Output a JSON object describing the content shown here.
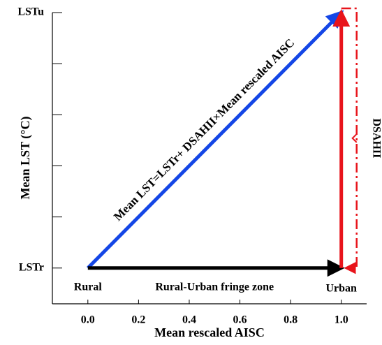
{
  "chart_data": {
    "type": "line",
    "x_label": "Mean rescaled AISC",
    "y_label": "Mean LST (°C)",
    "xlim": [
      -0.14,
      1.1
    ],
    "xticks": [
      {
        "value": 0,
        "label": "0.0"
      },
      0.2,
      0.4,
      0.6,
      0.8,
      {
        "value": 1,
        "label": "1.0"
      }
    ],
    "ylim": [
      -0.14,
      1.0
    ],
    "yticks": [
      {
        "value": 0,
        "label": "LSTr"
      },
      {
        "value": 1,
        "label": "LSTu"
      }
    ],
    "yminorticks": [
      0.2,
      0.4,
      0.6,
      0.8
    ],
    "lines": [
      {
        "color": "#1446e6",
        "x": [
          0,
          1
        ],
        "values": [
          0,
          1
        ]
      },
      {
        "color": "#000000",
        "x": [
          0,
          1
        ],
        "values": [
          0,
          0
        ]
      },
      {
        "color": "#e8141b",
        "x": [
          1,
          1
        ],
        "values": [
          0,
          1
        ]
      }
    ],
    "annotations": {
      "equation": "Mean LST=LSTr+ DSAHII×Mean rescaled AISC",
      "rural": "Rural",
      "fringe": "Rural-Urban fringe zone",
      "urban": "Urban",
      "dsahii": "DSAHII"
    }
  }
}
